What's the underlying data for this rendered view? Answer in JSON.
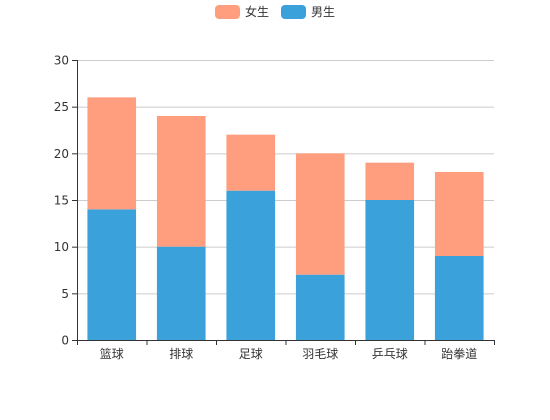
{
  "chart_data": {
    "type": "bar",
    "stacked": true,
    "categories": [
      "篮球",
      "排球",
      "足球",
      "羽毛球",
      "乒乓球",
      "跆拳道"
    ],
    "series": [
      {
        "name": "男生",
        "values": [
          14,
          10,
          16,
          7,
          15,
          9
        ],
        "color": "#3ba1db"
      },
      {
        "name": "女生",
        "values": [
          12,
          14,
          6,
          13,
          4,
          9
        ],
        "color": "#fe9e7e"
      }
    ],
    "legend_order": [
      "女生",
      "男生"
    ],
    "ylim": [
      0,
      30
    ],
    "yticks": [
      0,
      5,
      10,
      15,
      20,
      25,
      30
    ],
    "grid": true,
    "legend_position": "top-center",
    "colors": {
      "axis": "#333333",
      "grid": "#cccccc"
    }
  }
}
